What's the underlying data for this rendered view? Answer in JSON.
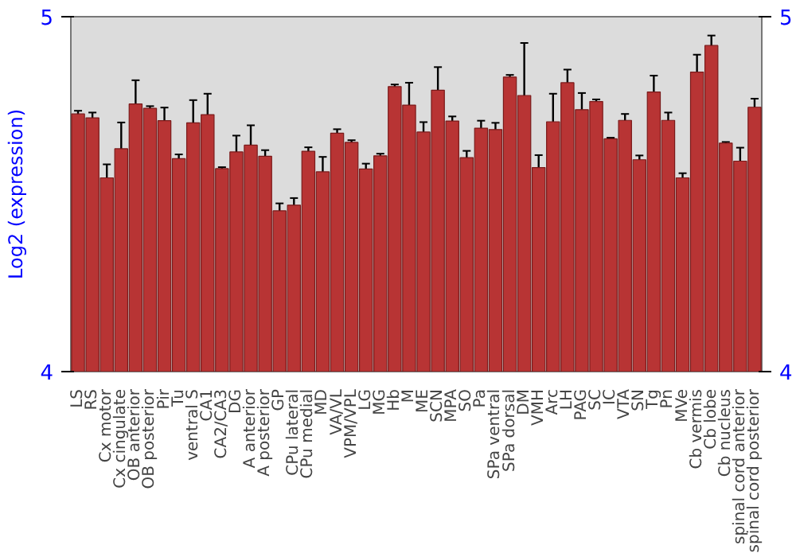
{
  "chart_data": {
    "type": "bar",
    "ylabel": "Log2 (expression)",
    "categories": [
      "LS",
      "RS",
      "Cx motor",
      "Cx cingulate",
      "OB anterior",
      "OB posterior",
      "Pir",
      "Tu",
      "ventral S",
      "CA1",
      "CA2/CA3",
      "DG",
      "A anterior",
      "A posterior",
      "GP",
      "CPu lateral",
      "CPu medial",
      "MD",
      "VA/VL",
      "VPM/VPL",
      "LG",
      "MG",
      "Hb",
      "M",
      "ME",
      "SCN",
      "MPA",
      "SO",
      "Pa",
      "SPa ventral",
      "SPa dorsal",
      "DM",
      "VMH",
      "Arc",
      "LH",
      "PAG",
      "SC",
      "IC",
      "VTA",
      "SN",
      "Tg",
      "Pn",
      "MVe",
      "Cb vermis",
      "Cb lobe",
      "Cb nucleus",
      "spinal cord anterior",
      "spinal cord posterior"
    ],
    "values": [
      4.726,
      4.715,
      4.546,
      4.628,
      4.754,
      4.742,
      4.707,
      4.6,
      4.701,
      4.724,
      4.572,
      4.619,
      4.638,
      4.607,
      4.453,
      4.469,
      4.621,
      4.563,
      4.672,
      4.646,
      4.571,
      4.608,
      4.803,
      4.751,
      4.675,
      4.793,
      4.706,
      4.603,
      4.686,
      4.682,
      4.83,
      4.778,
      4.575,
      4.704,
      4.814,
      4.738,
      4.761,
      4.656,
      4.708,
      4.597,
      4.788,
      4.708,
      4.546,
      4.844,
      4.919,
      4.644,
      4.593,
      4.745
    ],
    "errors": [
      0.009,
      0.015,
      0.038,
      0.074,
      0.067,
      0.006,
      0.037,
      0.012,
      0.064,
      0.059,
      0.004,
      0.046,
      0.056,
      0.017,
      0.021,
      0.02,
      0.011,
      0.042,
      0.011,
      0.006,
      0.015,
      0.006,
      0.006,
      0.063,
      0.028,
      0.065,
      0.013,
      0.019,
      0.021,
      0.019,
      0.006,
      0.148,
      0.035,
      0.079,
      0.037,
      0.047,
      0.006,
      0.003,
      0.018,
      0.012,
      0.046,
      0.022,
      0.013,
      0.049,
      0.028,
      0.003,
      0.038,
      0.024
    ],
    "color": "#b83434",
    "ylim": [
      4,
      5
    ],
    "yticks": [
      4,
      5
    ],
    "y2lim": [
      4,
      5
    ],
    "y2ticks": [
      4,
      5
    ],
    "grid": false
  }
}
